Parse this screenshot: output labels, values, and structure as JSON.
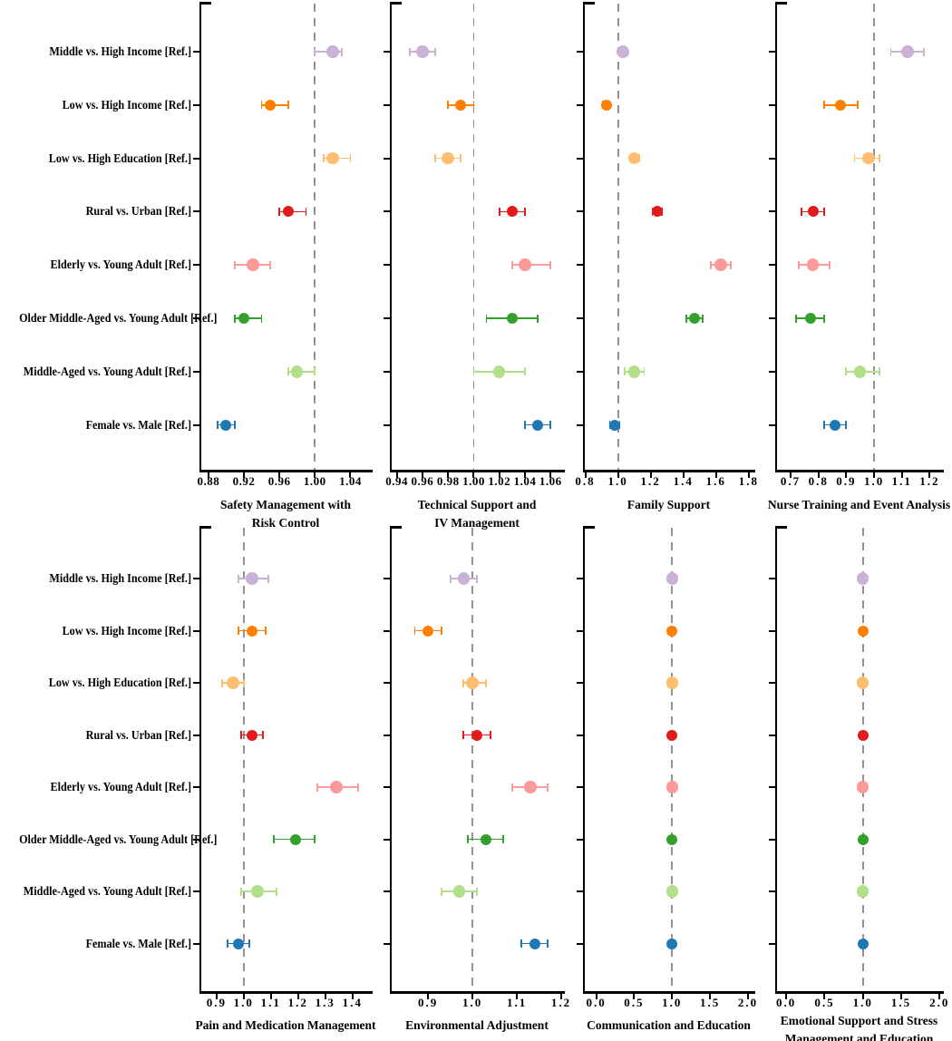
{
  "figure": {
    "background": "#ffffff",
    "text_color": "#000000",
    "axis_color": "#000000",
    "reference_line_color": "#929292",
    "reference_line_style": "dashed"
  },
  "chart_data": {
    "type": "scatter",
    "subtype": "forest-plot-grid",
    "grid": {
      "rows": 2,
      "cols": 4
    },
    "reference_value": 1.0,
    "legend": "none",
    "categories": [
      {
        "label": "Middle vs. High Income [Ref.]",
        "color": "#CAB2D6"
      },
      {
        "label": "Low vs. High Income [Ref.]",
        "color": "#FF7F00"
      },
      {
        "label": "Low vs. High Education [Ref.]",
        "color": "#FDBF6F"
      },
      {
        "label": "Rural vs. Urban [Ref.]",
        "color": "#E31A1C"
      },
      {
        "label": "Elderly vs. Young Adult [Ref.]",
        "color": "#FB9A99"
      },
      {
        "label": "Older Middle-Aged vs. Young Adult [Ref.]",
        "color": "#33A02C"
      },
      {
        "label": "Middle-Aged vs. Young Adult [Ref.]",
        "color": "#B2DF8A"
      },
      {
        "label": "Female vs. Male [Ref.]",
        "color": "#1F78B4"
      }
    ],
    "panels": [
      {
        "title": [
          "Safety Management with",
          "Risk Control"
        ],
        "xlim": [
          0.872,
          1.062
        ],
        "ticks": [
          0.88,
          0.92,
          0.96,
          1.0,
          1.04
        ],
        "tick_labels": [
          "0.88",
          "0.92",
          "0.96",
          "1.00",
          "1.04"
        ],
        "estimates": [
          {
            "value": 1.02,
            "ci": [
              1.0,
              1.03
            ]
          },
          {
            "value": 0.95,
            "ci": [
              0.94,
              0.97
            ]
          },
          {
            "value": 1.02,
            "ci": [
              1.01,
              1.04
            ]
          },
          {
            "value": 0.97,
            "ci": [
              0.96,
              0.99
            ]
          },
          {
            "value": 0.93,
            "ci": [
              0.91,
              0.95
            ]
          },
          {
            "value": 0.92,
            "ci": [
              0.91,
              0.94
            ]
          },
          {
            "value": 0.98,
            "ci": [
              0.97,
              1.0
            ]
          },
          {
            "value": 0.9,
            "ci": [
              0.89,
              0.91
            ]
          }
        ]
      },
      {
        "title": [
          "Technical Support and",
          "IV Management"
        ],
        "xlim": [
          0.936,
          1.069
        ],
        "ticks": [
          0.94,
          0.96,
          0.98,
          1.0,
          1.02,
          1.04,
          1.06
        ],
        "tick_labels": [
          "0.94",
          "0.96",
          "0.98",
          "1.00",
          "1.02",
          "1.04",
          "1.06"
        ],
        "estimates": [
          {
            "value": 0.96,
            "ci": [
              0.95,
              0.97
            ]
          },
          {
            "value": 0.99,
            "ci": [
              0.98,
              1.0
            ]
          },
          {
            "value": 0.98,
            "ci": [
              0.97,
              0.99
            ]
          },
          {
            "value": 1.03,
            "ci": [
              1.02,
              1.04
            ]
          },
          {
            "value": 1.04,
            "ci": [
              1.03,
              1.06
            ]
          },
          {
            "value": 1.03,
            "ci": [
              1.01,
              1.05
            ]
          },
          {
            "value": 1.02,
            "ci": [
              1.0,
              1.04
            ]
          },
          {
            "value": 1.05,
            "ci": [
              1.04,
              1.06
            ]
          }
        ]
      },
      {
        "title": [
          "Family Support"
        ],
        "xlim": [
          0.797,
          1.823
        ],
        "ticks": [
          0.8,
          1.0,
          1.2,
          1.4,
          1.6,
          1.8
        ],
        "tick_labels": [
          "0.8",
          "1.0",
          "1.2",
          "1.4",
          "1.6",
          "1.8"
        ],
        "estimates": [
          {
            "value": 1.03,
            "ci": [
              1.01,
              1.06
            ]
          },
          {
            "value": 0.93,
            "ci": [
              0.91,
              0.95
            ]
          },
          {
            "value": 1.1,
            "ci": [
              1.08,
              1.13
            ]
          },
          {
            "value": 1.24,
            "ci": [
              1.21,
              1.27
            ]
          },
          {
            "value": 1.63,
            "ci": [
              1.57,
              1.69
            ]
          },
          {
            "value": 1.47,
            "ci": [
              1.42,
              1.52
            ]
          },
          {
            "value": 1.1,
            "ci": [
              1.04,
              1.16
            ]
          },
          {
            "value": 0.98,
            "ci": [
              0.95,
              1.01
            ]
          }
        ]
      },
      {
        "title": [
          "Nurse Training and Event Analysis"
        ],
        "xlim": [
          0.651,
          1.241
        ],
        "ticks": [
          0.7,
          0.8,
          0.9,
          1.0,
          1.1,
          1.2
        ],
        "tick_labels": [
          "0.7",
          "0.8",
          "0.9",
          "1.0",
          "1.1",
          "1.2"
        ],
        "estimates": [
          {
            "value": 1.12,
            "ci": [
              1.06,
              1.18
            ]
          },
          {
            "value": 0.88,
            "ci": [
              0.82,
              0.94
            ]
          },
          {
            "value": 0.98,
            "ci": [
              0.93,
              1.02
            ]
          },
          {
            "value": 0.78,
            "ci": [
              0.74,
              0.82
            ]
          },
          {
            "value": 0.78,
            "ci": [
              0.73,
              0.84
            ]
          },
          {
            "value": 0.77,
            "ci": [
              0.72,
              0.82
            ]
          },
          {
            "value": 0.95,
            "ci": [
              0.9,
              1.02
            ]
          },
          {
            "value": 0.86,
            "ci": [
              0.82,
              0.9
            ]
          }
        ]
      },
      {
        "title": [
          "Pain and Medication Management"
        ],
        "xlim": [
          0.844,
          1.464
        ],
        "ticks": [
          0.9,
          1.0,
          1.1,
          1.2,
          1.3,
          1.4
        ],
        "tick_labels": [
          "0.9",
          "1.0",
          "1.1",
          "1.2",
          "1.3",
          "1.4"
        ],
        "estimates": [
          {
            "value": 1.03,
            "ci": [
              0.98,
              1.09
            ]
          },
          {
            "value": 1.03,
            "ci": [
              0.98,
              1.08
            ]
          },
          {
            "value": 0.96,
            "ci": [
              0.92,
              1.0
            ]
          },
          {
            "value": 1.03,
            "ci": [
              0.99,
              1.07
            ]
          },
          {
            "value": 1.34,
            "ci": [
              1.27,
              1.42
            ]
          },
          {
            "value": 1.19,
            "ci": [
              1.11,
              1.26
            ]
          },
          {
            "value": 1.05,
            "ci": [
              0.99,
              1.12
            ]
          },
          {
            "value": 0.98,
            "ci": [
              0.94,
              1.02
            ]
          }
        ]
      },
      {
        "title": [
          "Environmental Adjustment"
        ],
        "xlim": [
          0.818,
          1.202
        ],
        "ticks": [
          0.9,
          1.0,
          1.1,
          1.2
        ],
        "tick_labels": [
          "0.9",
          "1.0",
          "1.1",
          "1.2"
        ],
        "estimates": [
          {
            "value": 0.98,
            "ci": [
              0.95,
              1.01
            ]
          },
          {
            "value": 0.9,
            "ci": [
              0.87,
              0.93
            ]
          },
          {
            "value": 1.0,
            "ci": [
              0.98,
              1.03
            ]
          },
          {
            "value": 1.01,
            "ci": [
              0.98,
              1.04
            ]
          },
          {
            "value": 1.13,
            "ci": [
              1.09,
              1.17
            ]
          },
          {
            "value": 1.03,
            "ci": [
              0.99,
              1.07
            ]
          },
          {
            "value": 0.97,
            "ci": [
              0.93,
              1.01
            ]
          },
          {
            "value": 1.14,
            "ci": [
              1.11,
              1.17
            ]
          }
        ]
      },
      {
        "title": [
          "Communication and Education"
        ],
        "xlim": [
          -0.15,
          2.06
        ],
        "ticks": [
          0.0,
          0.5,
          1.0,
          1.5,
          2.0
        ],
        "tick_labels": [
          "0.0",
          "0.5",
          "1.0",
          "1.5",
          "2.0"
        ],
        "estimates": [
          {
            "value": 1.0,
            "ci": [
              0.97,
              1.03
            ]
          },
          {
            "value": 1.0,
            "ci": [
              0.97,
              1.03
            ]
          },
          {
            "value": 1.0,
            "ci": [
              0.97,
              1.03
            ]
          },
          {
            "value": 1.0,
            "ci": [
              0.97,
              1.03
            ]
          },
          {
            "value": 1.0,
            "ci": [
              0.97,
              1.03
            ]
          },
          {
            "value": 1.0,
            "ci": [
              0.97,
              1.03
            ]
          },
          {
            "value": 1.0,
            "ci": [
              0.97,
              1.03
            ]
          },
          {
            "value": 1.0,
            "ci": [
              0.97,
              1.03
            ]
          }
        ]
      },
      {
        "title": [
          "Emotional Support and Stress",
          "Management and Education"
        ],
        "xlim": [
          -0.12,
          2.02
        ],
        "ticks": [
          0.0,
          0.5,
          1.0,
          1.5,
          2.0
        ],
        "tick_labels": [
          "0.0",
          "0.5",
          "1.0",
          "1.5",
          "2.0"
        ],
        "estimates": [
          {
            "value": 1.0,
            "ci": [
              0.97,
              1.03
            ]
          },
          {
            "value": 1.0,
            "ci": [
              0.97,
              1.03
            ]
          },
          {
            "value": 1.0,
            "ci": [
              0.97,
              1.03
            ]
          },
          {
            "value": 1.0,
            "ci": [
              0.97,
              1.03
            ]
          },
          {
            "value": 1.0,
            "ci": [
              0.97,
              1.03
            ]
          },
          {
            "value": 1.0,
            "ci": [
              0.97,
              1.03
            ]
          },
          {
            "value": 1.0,
            "ci": [
              0.97,
              1.03
            ]
          },
          {
            "value": 1.0,
            "ci": [
              0.97,
              1.03
            ]
          }
        ]
      }
    ]
  }
}
